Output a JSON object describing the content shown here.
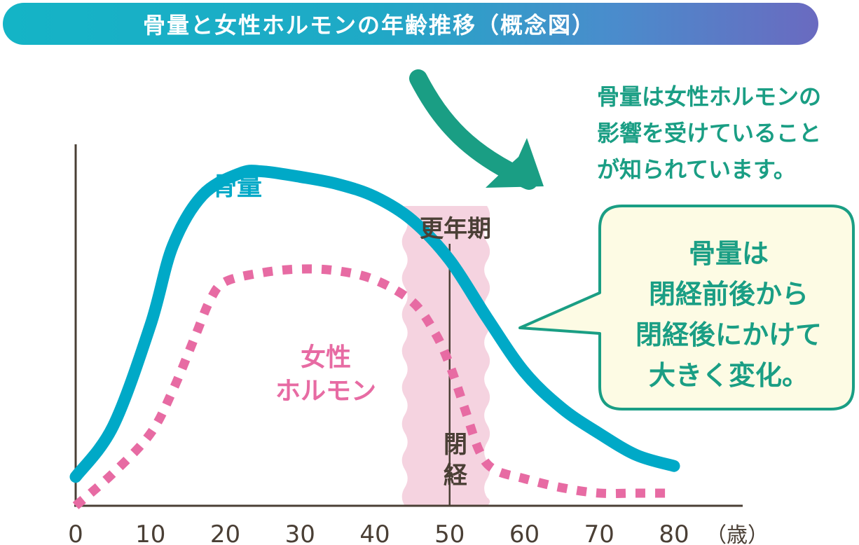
{
  "title": "骨量と女性ホルモンの年齢推移（概念図）",
  "note": "骨量は女性ホルモンの\n影響を受けていること\nが知られています。",
  "callout": "骨量は\n閉経前後から\n閉経後にかけて\n大きく変化。",
  "colors": {
    "bone": "#00a9c7",
    "hormone": "#e76ba3",
    "menopause_band": "#f5d3e0",
    "accent_green": "#1a9e84",
    "axis": "#4a3f35",
    "bubble_fill": "#fdfbe4"
  },
  "chart_data": {
    "type": "line",
    "x_unit": "（歳）",
    "x_ticks": [
      "0",
      "10",
      "20",
      "30",
      "40",
      "50",
      "60",
      "70",
      "80"
    ],
    "xlim": [
      0,
      80
    ],
    "grid": false,
    "annotations": {
      "period_label": "更年期",
      "period_range": [
        44,
        55
      ],
      "event_label": "閉経",
      "event_x": 50
    },
    "series": [
      {
        "name": "骨量",
        "style": "solid",
        "points": [
          [
            0,
            0.08
          ],
          [
            5,
            0.22
          ],
          [
            10,
            0.5
          ],
          [
            13,
            0.72
          ],
          [
            17,
            0.86
          ],
          [
            22,
            0.92
          ],
          [
            25,
            0.925
          ],
          [
            30,
            0.91
          ],
          [
            35,
            0.89
          ],
          [
            40,
            0.855
          ],
          [
            45,
            0.79
          ],
          [
            50,
            0.68
          ],
          [
            55,
            0.52
          ],
          [
            60,
            0.37
          ],
          [
            65,
            0.27
          ],
          [
            70,
            0.2
          ],
          [
            75,
            0.14
          ],
          [
            80,
            0.11
          ]
        ]
      },
      {
        "name": "女性\nホルモン",
        "style": "dashed",
        "points": [
          [
            0,
            0.0
          ],
          [
            5,
            0.09
          ],
          [
            10,
            0.2
          ],
          [
            13,
            0.32
          ],
          [
            16,
            0.47
          ],
          [
            18,
            0.57
          ],
          [
            20,
            0.62
          ],
          [
            25,
            0.645
          ],
          [
            30,
            0.655
          ],
          [
            35,
            0.65
          ],
          [
            40,
            0.625
          ],
          [
            45,
            0.565
          ],
          [
            48,
            0.48
          ],
          [
            50,
            0.39
          ],
          [
            52,
            0.27
          ],
          [
            54,
            0.15
          ],
          [
            56,
            0.1
          ],
          [
            60,
            0.075
          ],
          [
            65,
            0.05
          ],
          [
            70,
            0.035
          ],
          [
            75,
            0.035
          ],
          [
            80,
            0.035
          ]
        ]
      }
    ]
  }
}
